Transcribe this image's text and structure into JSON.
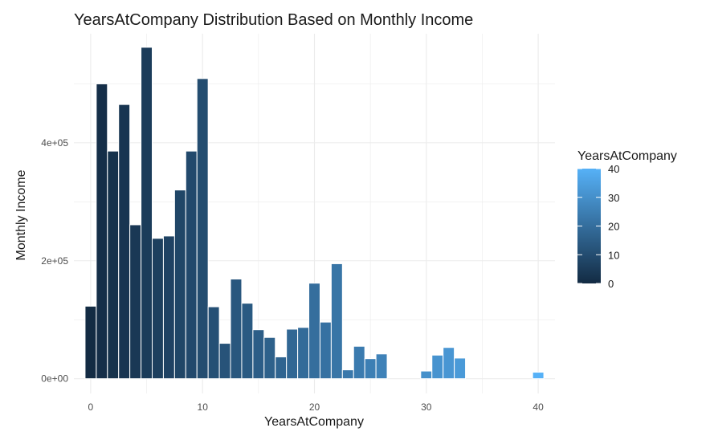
{
  "chart_data": {
    "type": "bar",
    "title": "YearsAtCompany Distribution Based on Monthly Income",
    "xlabel": "YearsAtCompany",
    "ylabel": "Monthly Income",
    "xlim": [
      -1.5,
      41.5
    ],
    "ylim": [
      -25000,
      585000
    ],
    "x_ticks": [
      0,
      10,
      20,
      30,
      40
    ],
    "x_tick_labels": [
      "0",
      "10",
      "20",
      "30",
      "40"
    ],
    "y_ticks": [
      0,
      200000,
      400000
    ],
    "y_tick_labels": [
      "0e+00",
      "2e+05",
      "4e+05"
    ],
    "x": [
      0,
      1,
      2,
      3,
      4,
      5,
      6,
      7,
      8,
      9,
      10,
      11,
      12,
      13,
      14,
      15,
      16,
      17,
      18,
      19,
      20,
      21,
      22,
      23,
      24,
      25,
      26,
      30,
      31,
      32,
      33,
      40
    ],
    "values": [
      123000,
      500000,
      386000,
      465000,
      261000,
      562000,
      238000,
      242000,
      320000,
      386000,
      509000,
      122000,
      60000,
      169000,
      128000,
      83000,
      70000,
      37000,
      84000,
      87000,
      162000,
      96000,
      195000,
      15000,
      55000,
      34000,
      42000,
      13000,
      40000,
      53000,
      35000,
      11000
    ],
    "color_scale": {
      "title": "YearsAtCompany",
      "low_color": "#132B43",
      "high_color": "#56B1F7",
      "limits": [
        0,
        40
      ],
      "breaks": [
        0,
        10,
        20,
        30,
        40
      ],
      "break_labels": [
        "0",
        "10",
        "20",
        "30",
        "40"
      ]
    },
    "grid": true,
    "legend_position": "right"
  }
}
